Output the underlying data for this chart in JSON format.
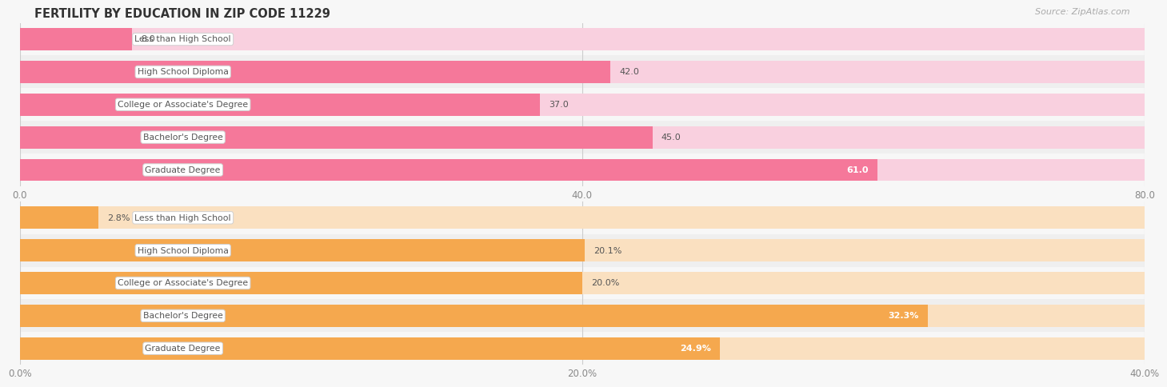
{
  "title": "FERTILITY BY EDUCATION IN ZIP CODE 11229",
  "source": "Source: ZipAtlas.com",
  "top_chart": {
    "categories": [
      "Less than High School",
      "High School Diploma",
      "College or Associate's Degree",
      "Bachelor's Degree",
      "Graduate Degree"
    ],
    "values": [
      8.0,
      42.0,
      37.0,
      45.0,
      61.0
    ],
    "labels": [
      "8.0",
      "42.0",
      "37.0",
      "45.0",
      "61.0"
    ],
    "label_inside": [
      false,
      false,
      false,
      false,
      true
    ],
    "bar_color": "#F5789A",
    "bar_bg_color": "#F9D0DF",
    "xlim": [
      0,
      80
    ],
    "xticks": [
      0.0,
      40.0,
      80.0
    ],
    "xtick_labels": [
      "0.0",
      "40.0",
      "80.0"
    ]
  },
  "bottom_chart": {
    "categories": [
      "Less than High School",
      "High School Diploma",
      "College or Associate's Degree",
      "Bachelor's Degree",
      "Graduate Degree"
    ],
    "values": [
      2.8,
      20.1,
      20.0,
      32.3,
      24.9
    ],
    "labels": [
      "2.8%",
      "20.1%",
      "20.0%",
      "32.3%",
      "24.9%"
    ],
    "label_inside": [
      false,
      false,
      false,
      true,
      true
    ],
    "bar_color": "#F5A84E",
    "bar_bg_color": "#FAE0C0",
    "xlim": [
      0,
      40
    ],
    "xticks": [
      0.0,
      20.0,
      40.0
    ],
    "xtick_labels": [
      "0.0%",
      "20.0%",
      "40.0%"
    ]
  },
  "label_box_color": "#FFFFFF",
  "label_box_edge_color": "#CCCCCC",
  "label_text_color": "#555555",
  "value_text_color_inside": "#FFFFFF",
  "value_text_color_outside": "#555555",
  "bg_color": "#F7F7F7",
  "row_bg_alt": "#EFEFEF",
  "title_color": "#333333",
  "source_color": "#AAAAAA"
}
